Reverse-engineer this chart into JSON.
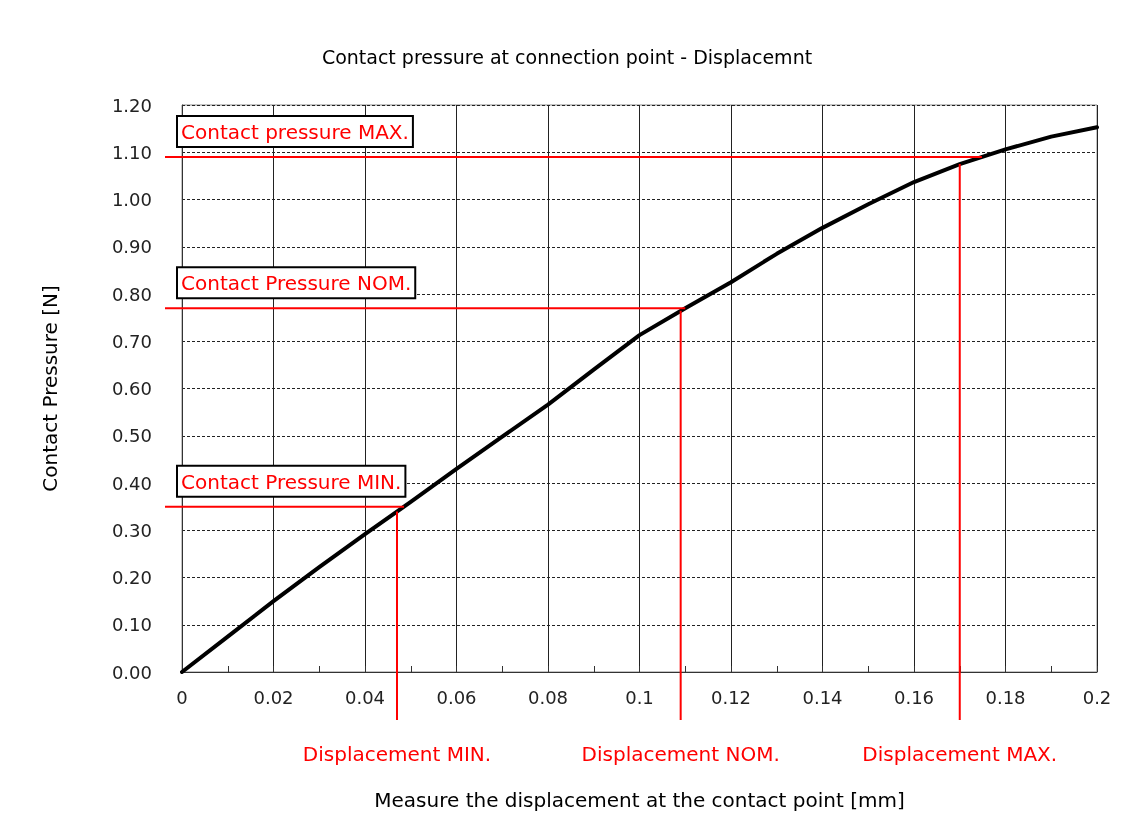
{
  "chart_data": {
    "type": "line",
    "title": "Contact pressure at connection point - Displacemnt",
    "xlabel": "Measure the displacement at the contact point [mm]",
    "ylabel": "Contact Pressure [N]",
    "x": [
      0,
      0.01,
      0.02,
      0.03,
      0.04,
      0.05,
      0.06,
      0.07,
      0.08,
      0.09,
      0.1,
      0.11,
      0.12,
      0.13,
      0.14,
      0.15,
      0.16,
      0.17,
      0.18,
      0.19,
      0.2
    ],
    "series": [
      {
        "color": "#000000",
        "values": [
          0,
          0.075,
          0.15,
          0.222,
          0.292,
          0.36,
          0.43,
          0.498,
          0.566,
          0.64,
          0.713,
          0.77,
          0.825,
          0.885,
          0.94,
          0.99,
          1.037,
          1.075,
          1.106,
          1.133,
          1.153
        ]
      }
    ],
    "xlim": [
      0,
      0.2
    ],
    "ylim": [
      0,
      1.2
    ],
    "xticks": [
      0,
      {
        "value": 0.01,
        "label": null
      },
      0.02,
      {
        "value": 0.03,
        "label": null
      },
      0.04,
      {
        "value": 0.05,
        "label": null
      },
      0.06,
      {
        "value": 0.07,
        "label": null
      },
      0.08,
      {
        "value": 0.09,
        "label": null
      },
      0.1,
      {
        "value": 0.11,
        "label": null
      },
      0.12,
      {
        "value": 0.13,
        "label": null
      },
      0.14,
      {
        "value": 0.15,
        "label": null
      },
      0.16,
      {
        "value": 0.17,
        "label": null
      },
      0.18,
      {
        "value": 0.19,
        "label": null
      },
      0.2
    ],
    "yticks": [
      {
        "value": 0,
        "label": "0.00"
      },
      {
        "value": 0.1,
        "label": "0.10"
      },
      {
        "value": 0.2,
        "label": "0.20"
      },
      {
        "value": 0.3,
        "label": "0.30"
      },
      {
        "value": 0.4,
        "label": "0.40"
      },
      {
        "value": 0.5,
        "label": "0.50"
      },
      {
        "value": 0.6,
        "label": "0.60"
      },
      {
        "value": 0.7,
        "label": "0.70"
      },
      {
        "value": 0.8,
        "label": "0.80"
      },
      {
        "value": 0.9,
        "label": "0.90"
      },
      {
        "value": 1,
        "label": "1.00"
      },
      {
        "value": 1.1,
        "label": "1.10"
      },
      {
        "value": 1.2,
        "label": "1.20"
      }
    ],
    "grid": true,
    "marker": "none",
    "line_style": "solid",
    "ref_lines": [
      {
        "axis": "y",
        "value": 1.09,
        "label": "Contact pressure MAX.",
        "color": "#ff0000"
      },
      {
        "axis": "y",
        "value": 0.77,
        "label": "Contact Pressure NOM.",
        "color": "#ff0000"
      },
      {
        "axis": "y",
        "value": 0.35,
        "label": "Contact Pressure MIN.",
        "color": "#ff0000"
      },
      {
        "axis": "x",
        "value": 0.047,
        "label": "Displacement MIN.",
        "color": "#ff0000"
      },
      {
        "axis": "x",
        "value": 0.109,
        "label": "Displacement NOM.",
        "color": "#ff0000"
      },
      {
        "axis": "x",
        "value": 0.17,
        "label": "Displacement MAX.",
        "color": "#ff0000"
      }
    ]
  }
}
